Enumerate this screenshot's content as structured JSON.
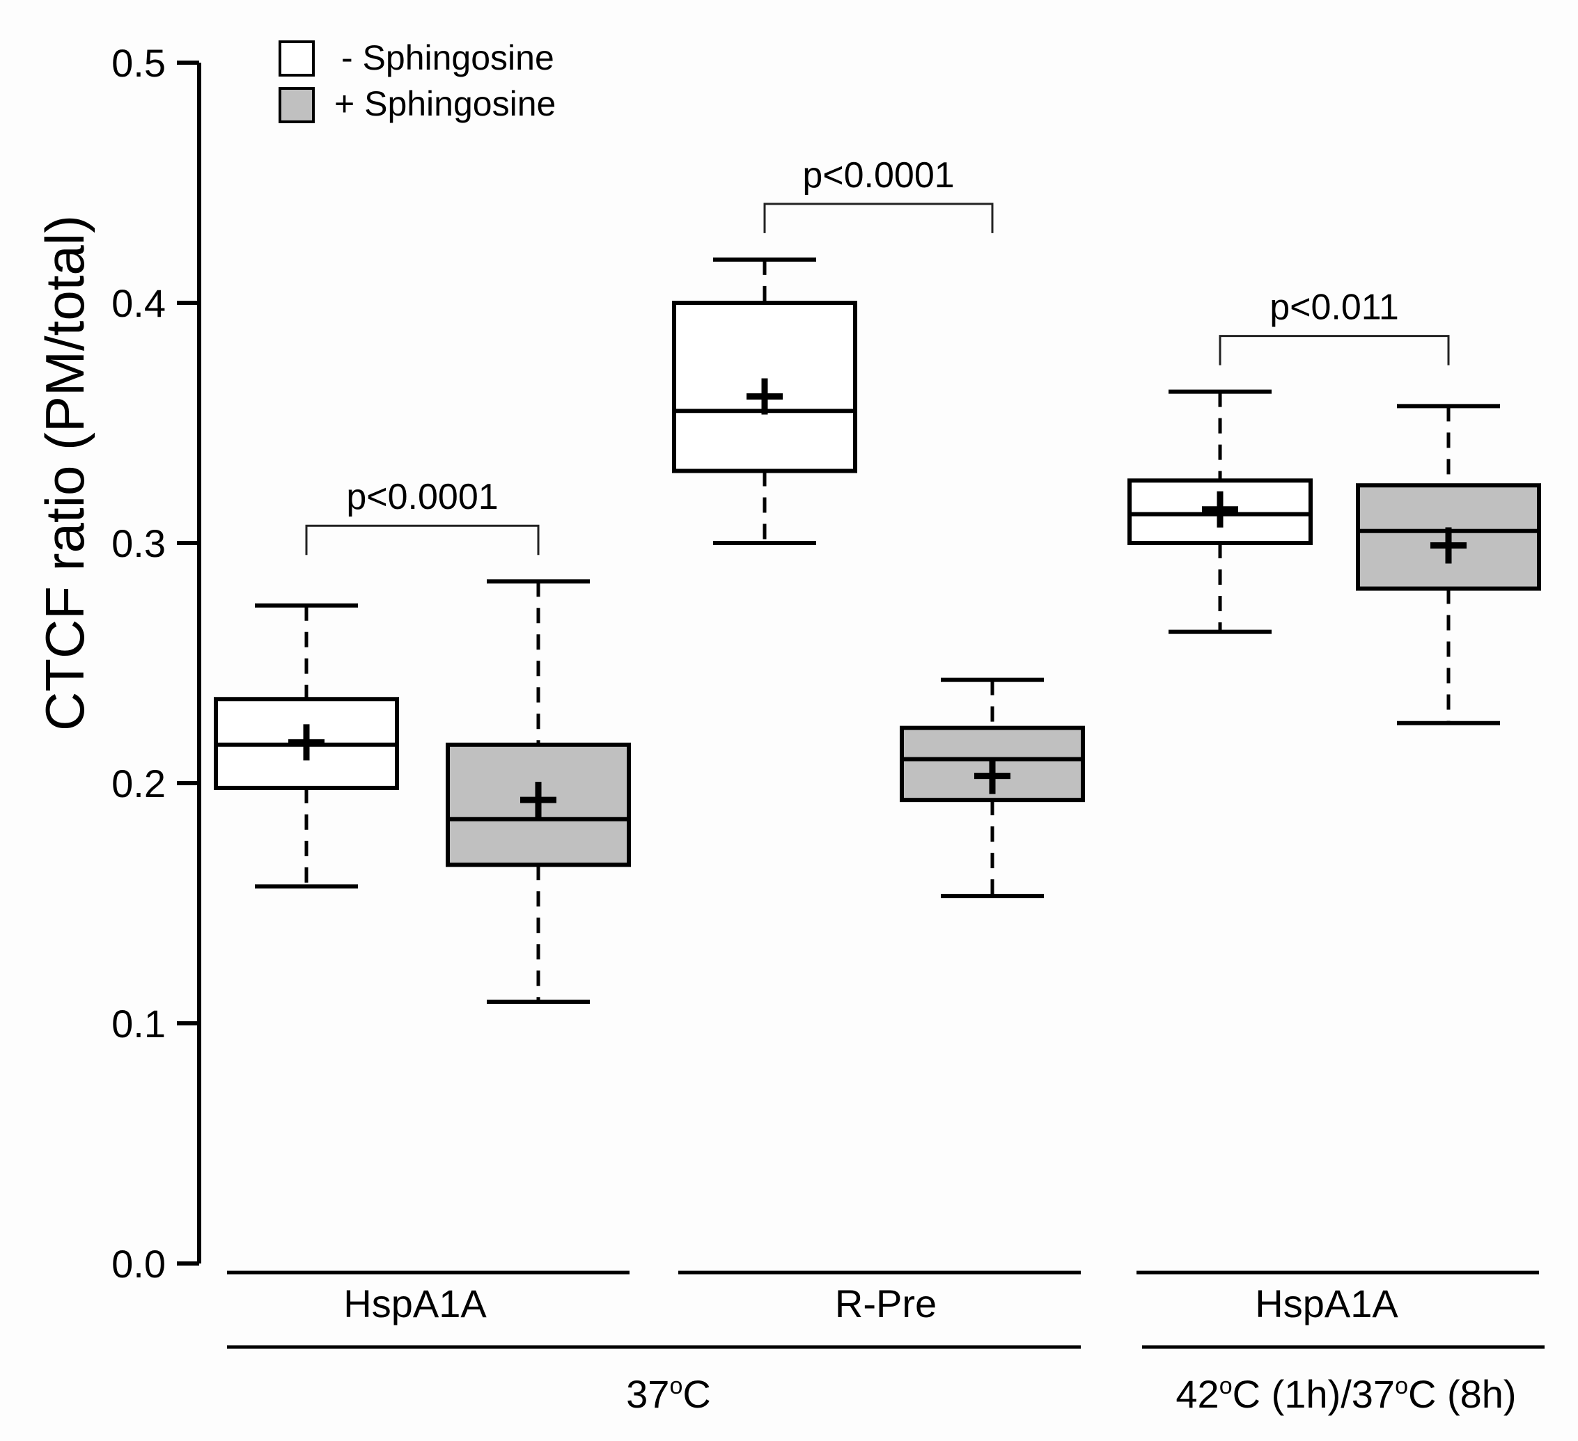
{
  "chart_data": {
    "type": "box",
    "ylabel": "CTCF ratio (PM/total)",
    "ylim": [
      0,
      0.5
    ],
    "yticks": [
      "0.0",
      "0.1",
      "0.2",
      "0.3",
      "0.4",
      "0.5"
    ],
    "legend": [
      {
        "label": "- Sphingosine",
        "fill": "#ffffff"
      },
      {
        "label": "+ Sphingosine",
        "fill": "#c0c0c0"
      }
    ],
    "boxes": [
      {
        "group": "HspA1A",
        "condition": "37oC",
        "treatment": "- Sphingosine",
        "whisker_low": 0.157,
        "q1": 0.198,
        "median": 0.216,
        "q3": 0.235,
        "whisker_high": 0.274,
        "mean": 0.217
      },
      {
        "group": "HspA1A",
        "condition": "37oC",
        "treatment": "+ Sphingosine",
        "whisker_low": 0.109,
        "q1": 0.166,
        "median": 0.185,
        "q3": 0.216,
        "whisker_high": 0.284,
        "mean": 0.193
      },
      {
        "group": "R-Pre",
        "condition": "37oC",
        "treatment": "- Sphingosine",
        "whisker_low": 0.3,
        "q1": 0.33,
        "median": 0.355,
        "q3": 0.4,
        "whisker_high": 0.418,
        "mean": 0.361
      },
      {
        "group": "R-Pre",
        "condition": "37oC",
        "treatment": "+ Sphingosine",
        "whisker_low": 0.153,
        "q1": 0.193,
        "median": 0.21,
        "q3": 0.223,
        "whisker_high": 0.243,
        "mean": 0.203
      },
      {
        "group": "HspA1A",
        "condition": "42oC (1h)/37oC (8h)",
        "treatment": "- Sphingosine",
        "whisker_low": 0.263,
        "q1": 0.3,
        "median": 0.312,
        "q3": 0.326,
        "whisker_high": 0.363,
        "mean": 0.314
      },
      {
        "group": "HspA1A",
        "condition": "42oC (1h)/37oC (8h)",
        "treatment": "+ Sphingosine",
        "whisker_low": 0.225,
        "q1": 0.281,
        "median": 0.305,
        "q3": 0.324,
        "whisker_high": 0.357,
        "mean": 0.299
      }
    ],
    "comparisons": [
      {
        "between": [
          0,
          1
        ],
        "label": "p<0.0001"
      },
      {
        "between": [
          2,
          3
        ],
        "label": "p<0.0001"
      },
      {
        "between": [
          4,
          5
        ],
        "label": "p<0.011"
      }
    ],
    "groups": [
      "HspA1A",
      "R-Pre",
      "HspA1A"
    ],
    "conditions": [
      {
        "label": "37",
        "sup": "o",
        "rest": "C"
      },
      {
        "label": "42",
        "sup": "o",
        "rest": "C (1h)/37",
        "sup2": "o",
        "rest2": "C (8h)"
      }
    ]
  }
}
